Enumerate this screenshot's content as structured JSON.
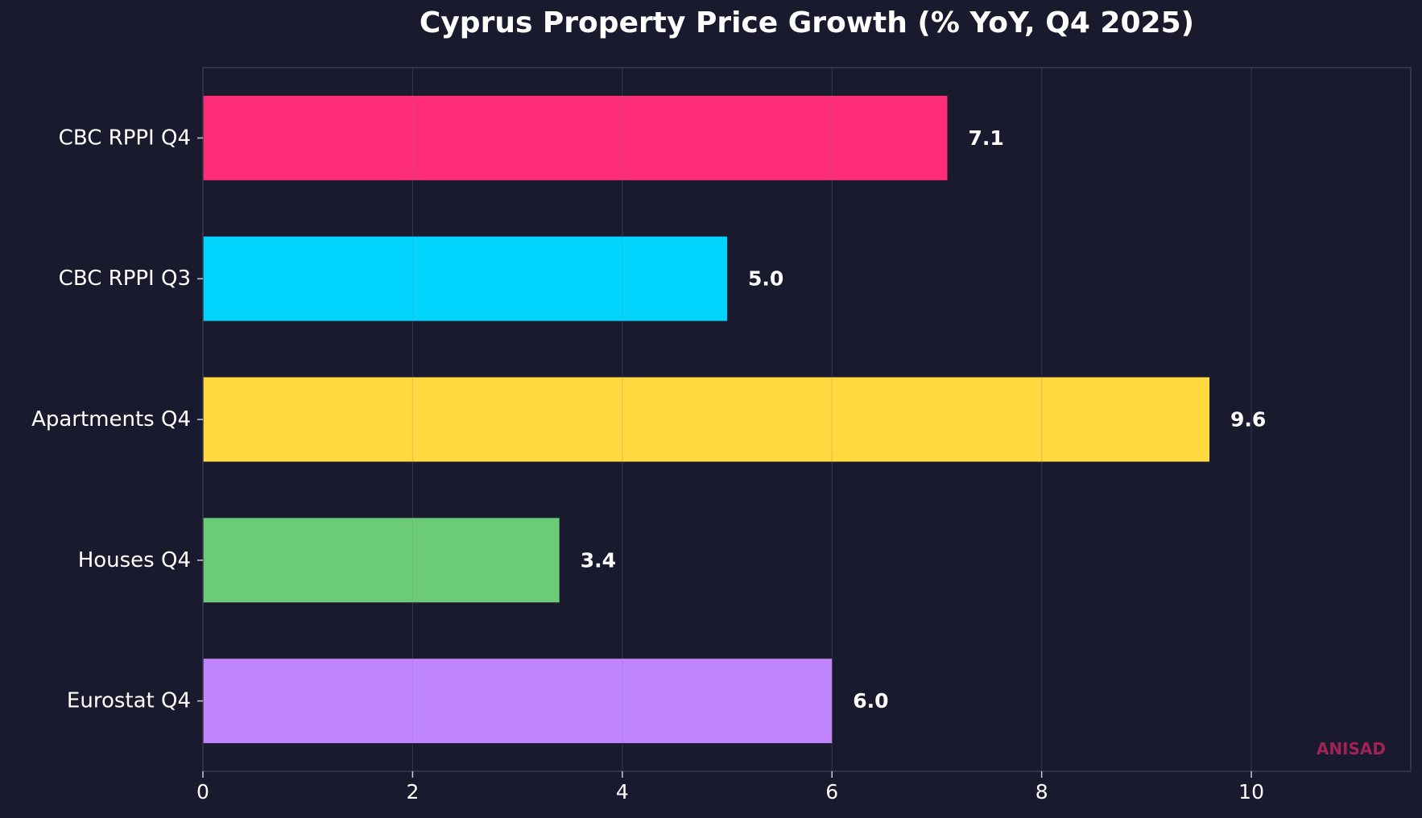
{
  "colors": {
    "background": "#1a1a2e",
    "plot_background": "#1a1a2e",
    "text": "#ffffff",
    "grid": "#2a2a44",
    "axis": "#3a3a55",
    "watermark": "#a02356"
  },
  "watermark": "ANISAD",
  "chart_data": {
    "type": "bar",
    "orientation": "horizontal",
    "title": "Cyprus Property Price Growth (% YoY, Q4 2025)",
    "xlabel": "",
    "ylabel": "",
    "categories": [
      "CBC RPPI Q4",
      "CBC RPPI Q3",
      "Apartments Q4",
      "Houses Q4",
      "Eurostat Q4"
    ],
    "values": [
      7.1,
      5.0,
      9.6,
      3.4,
      6.0
    ],
    "value_labels": [
      "7.1",
      "5.0",
      "9.6",
      "3.4",
      "6.0"
    ],
    "bar_colors": [
      "#ff2d78",
      "#00d4ff",
      "#ffd93d",
      "#6bcb77",
      "#c084fc"
    ],
    "xlim": [
      0,
      11.52
    ],
    "xticks": [
      0,
      2,
      4,
      6,
      8,
      10
    ],
    "xtick_labels": [
      "0",
      "2",
      "4",
      "6",
      "8",
      "10"
    ],
    "grid": true,
    "legend": "none"
  }
}
